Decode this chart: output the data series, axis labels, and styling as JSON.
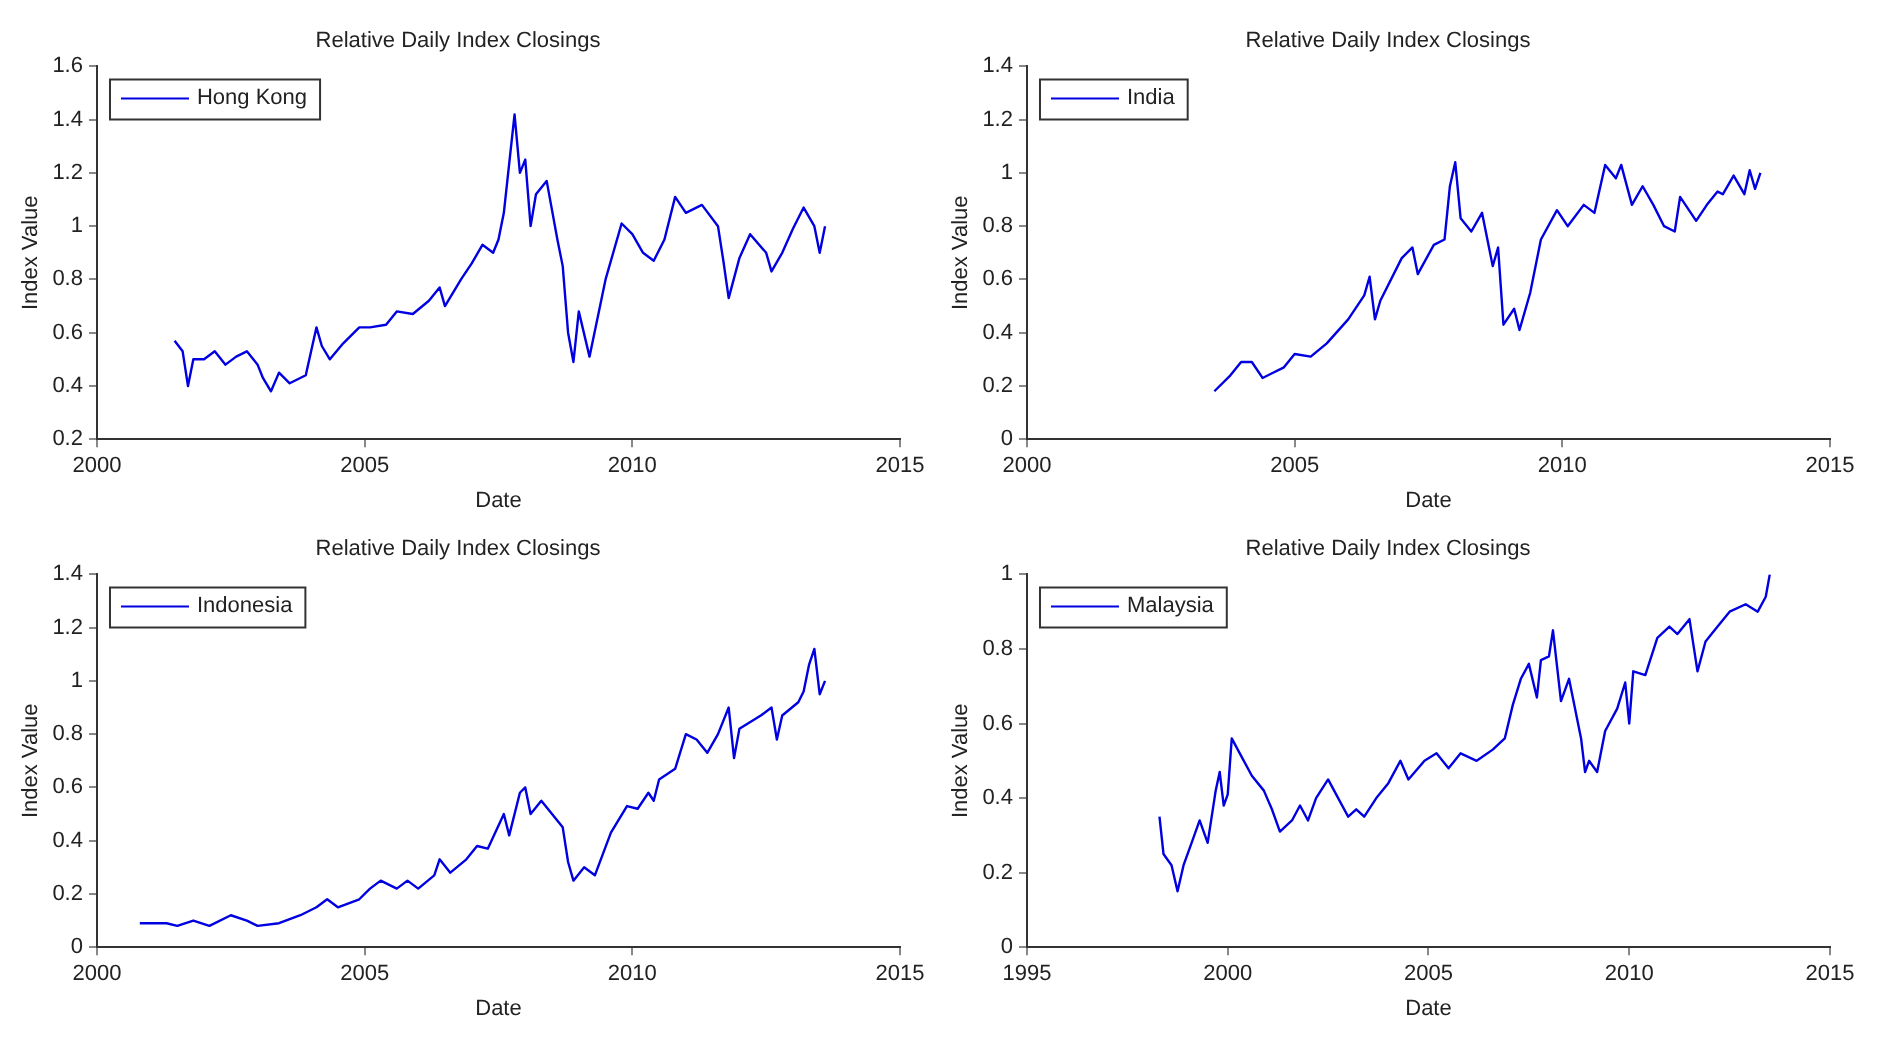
{
  "chart_data": [
    {
      "type": "line",
      "title": "Relative Daily Index Closings",
      "xlabel": "Date",
      "ylabel": "Index Value",
      "legend": "top left",
      "grid": false,
      "xlim": [
        2000,
        2015
      ],
      "xticks": [
        2000,
        2005,
        2010,
        2015
      ],
      "ylim": [
        0.2,
        1.6
      ],
      "yticks": [
        0.2,
        0.4,
        0.6,
        0.8,
        1,
        1.2,
        1.4,
        1.6
      ],
      "series": [
        {
          "name": "Hong Kong",
          "color": "#0000e0",
          "x": [
            2001.45,
            2001.6,
            2001.7,
            2001.8,
            2002.0,
            2002.2,
            2002.4,
            2002.6,
            2002.8,
            2003.0,
            2003.1,
            2003.25,
            2003.4,
            2003.6,
            2003.9,
            2004.1,
            2004.2,
            2004.35,
            2004.6,
            2004.9,
            2005.1,
            2005.4,
            2005.6,
            2005.9,
            2006.2,
            2006.4,
            2006.5,
            2006.8,
            2007.0,
            2007.2,
            2007.4,
            2007.5,
            2007.6,
            2007.8,
            2007.9,
            2008.0,
            2008.1,
            2008.2,
            2008.4,
            2008.6,
            2008.7,
            2008.8,
            2008.9,
            2009.0,
            2009.2,
            2009.5,
            2009.8,
            2010.0,
            2010.2,
            2010.4,
            2010.6,
            2010.8,
            2011.0,
            2011.3,
            2011.6,
            2011.7,
            2011.8,
            2012.0,
            2012.2,
            2012.5,
            2012.6,
            2012.8,
            2013.0,
            2013.2,
            2013.4,
            2013.5,
            2013.6
          ],
          "values": [
            0.57,
            0.53,
            0.4,
            0.5,
            0.5,
            0.53,
            0.48,
            0.51,
            0.53,
            0.48,
            0.43,
            0.38,
            0.45,
            0.41,
            0.44,
            0.62,
            0.55,
            0.5,
            0.56,
            0.62,
            0.62,
            0.63,
            0.68,
            0.67,
            0.72,
            0.77,
            0.7,
            0.8,
            0.86,
            0.93,
            0.9,
            0.95,
            1.05,
            1.42,
            1.2,
            1.25,
            1.0,
            1.12,
            1.17,
            0.95,
            0.85,
            0.6,
            0.49,
            0.68,
            0.51,
            0.8,
            1.01,
            0.97,
            0.9,
            0.87,
            0.95,
            1.11,
            1.05,
            1.08,
            1.0,
            0.87,
            0.73,
            0.88,
            0.97,
            0.9,
            0.83,
            0.9,
            0.99,
            1.07,
            1.0,
            0.9,
            1.0
          ]
        }
      ]
    },
    {
      "type": "line",
      "title": "Relative Daily Index Closings",
      "xlabel": "Date",
      "ylabel": "Index Value",
      "legend": "top left",
      "grid": false,
      "xlim": [
        2000,
        2015
      ],
      "xticks": [
        2000,
        2005,
        2010,
        2015
      ],
      "ylim": [
        0,
        1.4
      ],
      "yticks": [
        0,
        0.2,
        0.4,
        0.6,
        0.8,
        1,
        1.2,
        1.4
      ],
      "series": [
        {
          "name": "India",
          "color": "#0000e0",
          "x": [
            2003.5,
            2003.8,
            2004.0,
            2004.2,
            2004.4,
            2004.8,
            2005.0,
            2005.3,
            2005.6,
            2006.0,
            2006.3,
            2006.4,
            2006.5,
            2006.6,
            2007.0,
            2007.2,
            2007.3,
            2007.6,
            2007.8,
            2007.9,
            2008.0,
            2008.1,
            2008.3,
            2008.5,
            2008.7,
            2008.8,
            2008.9,
            2009.1,
            2009.2,
            2009.4,
            2009.6,
            2009.9,
            2010.1,
            2010.4,
            2010.6,
            2010.8,
            2011.0,
            2011.1,
            2011.3,
            2011.5,
            2011.7,
            2011.9,
            2012.1,
            2012.2,
            2012.5,
            2012.7,
            2012.9,
            2013.0,
            2013.2,
            2013.4,
            2013.5,
            2013.6,
            2013.7
          ],
          "values": [
            0.18,
            0.24,
            0.29,
            0.29,
            0.23,
            0.27,
            0.32,
            0.31,
            0.36,
            0.45,
            0.54,
            0.61,
            0.45,
            0.52,
            0.68,
            0.72,
            0.62,
            0.73,
            0.75,
            0.95,
            1.04,
            0.83,
            0.78,
            0.85,
            0.65,
            0.72,
            0.43,
            0.49,
            0.41,
            0.55,
            0.75,
            0.86,
            0.8,
            0.88,
            0.85,
            1.03,
            0.98,
            1.03,
            0.88,
            0.95,
            0.88,
            0.8,
            0.78,
            0.91,
            0.82,
            0.88,
            0.93,
            0.92,
            0.99,
            0.92,
            1.01,
            0.94,
            1.0
          ]
        }
      ]
    },
    {
      "type": "line",
      "title": "Relative Daily Index Closings",
      "xlabel": "Date",
      "ylabel": "Index Value",
      "legend": "top left",
      "grid": false,
      "xlim": [
        2000,
        2015
      ],
      "xticks": [
        2000,
        2005,
        2010,
        2015
      ],
      "ylim": [
        0,
        1.4
      ],
      "yticks": [
        0,
        0.2,
        0.4,
        0.6,
        0.8,
        1,
        1.2,
        1.4
      ],
      "series": [
        {
          "name": "Indonesia",
          "color": "#0000e0",
          "x": [
            2000.8,
            2001.3,
            2001.5,
            2001.8,
            2002.1,
            2002.5,
            2002.8,
            2003.0,
            2003.4,
            2003.8,
            2004.1,
            2004.3,
            2004.5,
            2004.9,
            2005.1,
            2005.3,
            2005.6,
            2005.8,
            2006.0,
            2006.3,
            2006.4,
            2006.6,
            2006.9,
            2007.1,
            2007.3,
            2007.6,
            2007.7,
            2007.9,
            2008.0,
            2008.1,
            2008.3,
            2008.5,
            2008.7,
            2008.8,
            2008.9,
            2009.1,
            2009.3,
            2009.6,
            2009.9,
            2010.1,
            2010.3,
            2010.4,
            2010.5,
            2010.8,
            2011.0,
            2011.2,
            2011.4,
            2011.6,
            2011.8,
            2011.9,
            2012.0,
            2012.4,
            2012.6,
            2012.7,
            2012.8,
            2013.1,
            2013.2,
            2013.3,
            2013.4,
            2013.5,
            2013.6
          ],
          "values": [
            0.09,
            0.09,
            0.08,
            0.1,
            0.08,
            0.12,
            0.1,
            0.08,
            0.09,
            0.12,
            0.15,
            0.18,
            0.15,
            0.18,
            0.22,
            0.25,
            0.22,
            0.25,
            0.22,
            0.27,
            0.33,
            0.28,
            0.33,
            0.38,
            0.37,
            0.5,
            0.42,
            0.58,
            0.6,
            0.5,
            0.55,
            0.5,
            0.45,
            0.32,
            0.25,
            0.3,
            0.27,
            0.43,
            0.53,
            0.52,
            0.58,
            0.55,
            0.63,
            0.67,
            0.8,
            0.78,
            0.73,
            0.8,
            0.9,
            0.71,
            0.82,
            0.87,
            0.9,
            0.78,
            0.87,
            0.92,
            0.96,
            1.06,
            1.12,
            0.95,
            1.0
          ]
        }
      ]
    },
    {
      "type": "line",
      "title": "Relative Daily Index Closings",
      "xlabel": "Date",
      "ylabel": "Index Value",
      "legend": "top left",
      "grid": false,
      "xlim": [
        1995,
        2015
      ],
      "xticks": [
        1995,
        2000,
        2005,
        2010,
        2015
      ],
      "ylim": [
        0,
        1
      ],
      "yticks": [
        0,
        0.2,
        0.4,
        0.6,
        0.8,
        1
      ],
      "series": [
        {
          "name": "Malaysia",
          "color": "#0000e0",
          "x": [
            1998.3,
            1998.4,
            1998.6,
            1998.75,
            1998.9,
            1999.1,
            1999.3,
            1999.5,
            1999.7,
            1999.8,
            1999.9,
            2000.0,
            2000.1,
            2000.3,
            2000.6,
            2000.9,
            2001.1,
            2001.3,
            2001.6,
            2001.8,
            2002.0,
            2002.2,
            2002.5,
            2002.7,
            2003.0,
            2003.2,
            2003.4,
            2003.7,
            2004.0,
            2004.3,
            2004.5,
            2004.9,
            2005.2,
            2005.5,
            2005.8,
            2006.2,
            2006.6,
            2006.9,
            2007.1,
            2007.3,
            2007.5,
            2007.7,
            2007.8,
            2008.0,
            2008.1,
            2008.3,
            2008.5,
            2008.8,
            2008.9,
            2009.0,
            2009.2,
            2009.4,
            2009.7,
            2009.9,
            2010.0,
            2010.1,
            2010.4,
            2010.7,
            2011.0,
            2011.2,
            2011.5,
            2011.7,
            2011.9,
            2012.2,
            2012.5,
            2012.9,
            2013.2,
            2013.4,
            2013.5
          ],
          "values": [
            0.35,
            0.25,
            0.22,
            0.15,
            0.22,
            0.28,
            0.34,
            0.28,
            0.42,
            0.47,
            0.38,
            0.41,
            0.56,
            0.52,
            0.46,
            0.42,
            0.37,
            0.31,
            0.34,
            0.38,
            0.34,
            0.4,
            0.45,
            0.41,
            0.35,
            0.37,
            0.35,
            0.4,
            0.44,
            0.5,
            0.45,
            0.5,
            0.52,
            0.48,
            0.52,
            0.5,
            0.53,
            0.56,
            0.65,
            0.72,
            0.76,
            0.67,
            0.77,
            0.78,
            0.85,
            0.66,
            0.72,
            0.56,
            0.47,
            0.5,
            0.47,
            0.58,
            0.64,
            0.71,
            0.6,
            0.74,
            0.73,
            0.83,
            0.86,
            0.84,
            0.88,
            0.74,
            0.82,
            0.86,
            0.9,
            0.92,
            0.9,
            0.94,
            1.0
          ]
        }
      ]
    }
  ]
}
